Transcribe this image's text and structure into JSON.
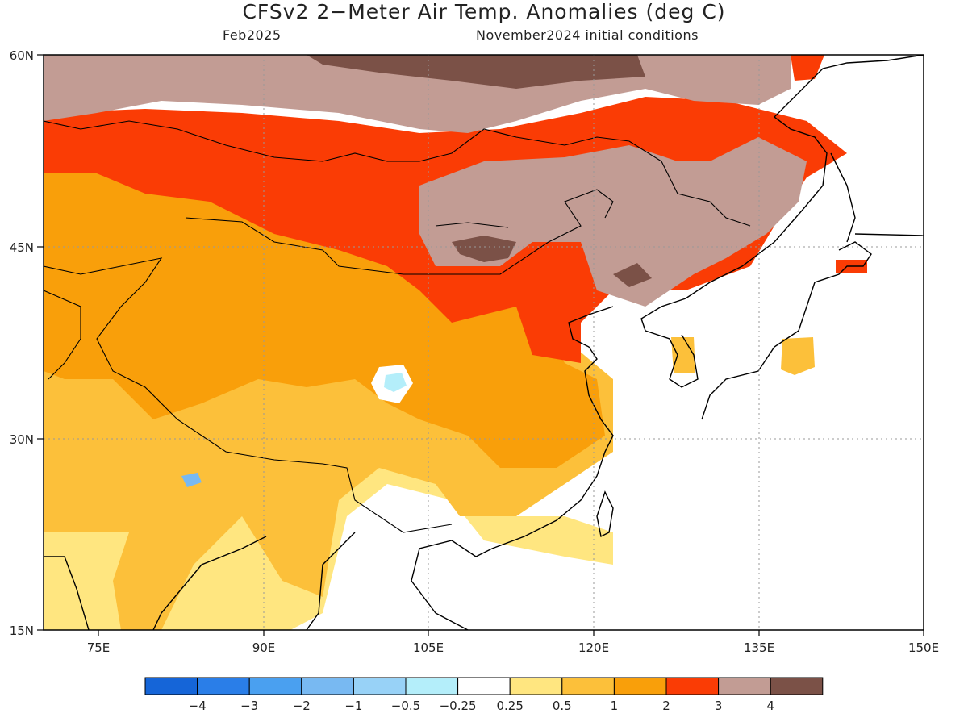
{
  "header": {
    "title": "CFSv2 2−Meter Air Temp. Anomalies (deg C)",
    "target_month": "Feb2025",
    "initial_conditions": "November2024 initial conditions"
  },
  "map": {
    "lat_range": [
      15,
      60
    ],
    "lon_range": [
      70,
      150
    ],
    "lat_ticks": [
      "60N",
      "45N",
      "30N",
      "15N"
    ],
    "lon_ticks": [
      "75E",
      "90E",
      "105E",
      "120E",
      "135E",
      "150E"
    ]
  },
  "colorbar": {
    "labels": [
      "−4",
      "−3",
      "−2",
      "−1",
      "−0.5",
      "−0.25",
      "0.25",
      "0.5",
      "1",
      "2",
      "3",
      "4"
    ],
    "colors": [
      "#1565d8",
      "#2a7ee8",
      "#4aa0f0",
      "#78b9f2",
      "#98d2f7",
      "#b4eefa",
      "#ffffff",
      "#ffe680",
      "#fcc03a",
      "#f99f0a",
      "#fa3c05",
      "#c29c94",
      "#7b5147"
    ]
  }
}
